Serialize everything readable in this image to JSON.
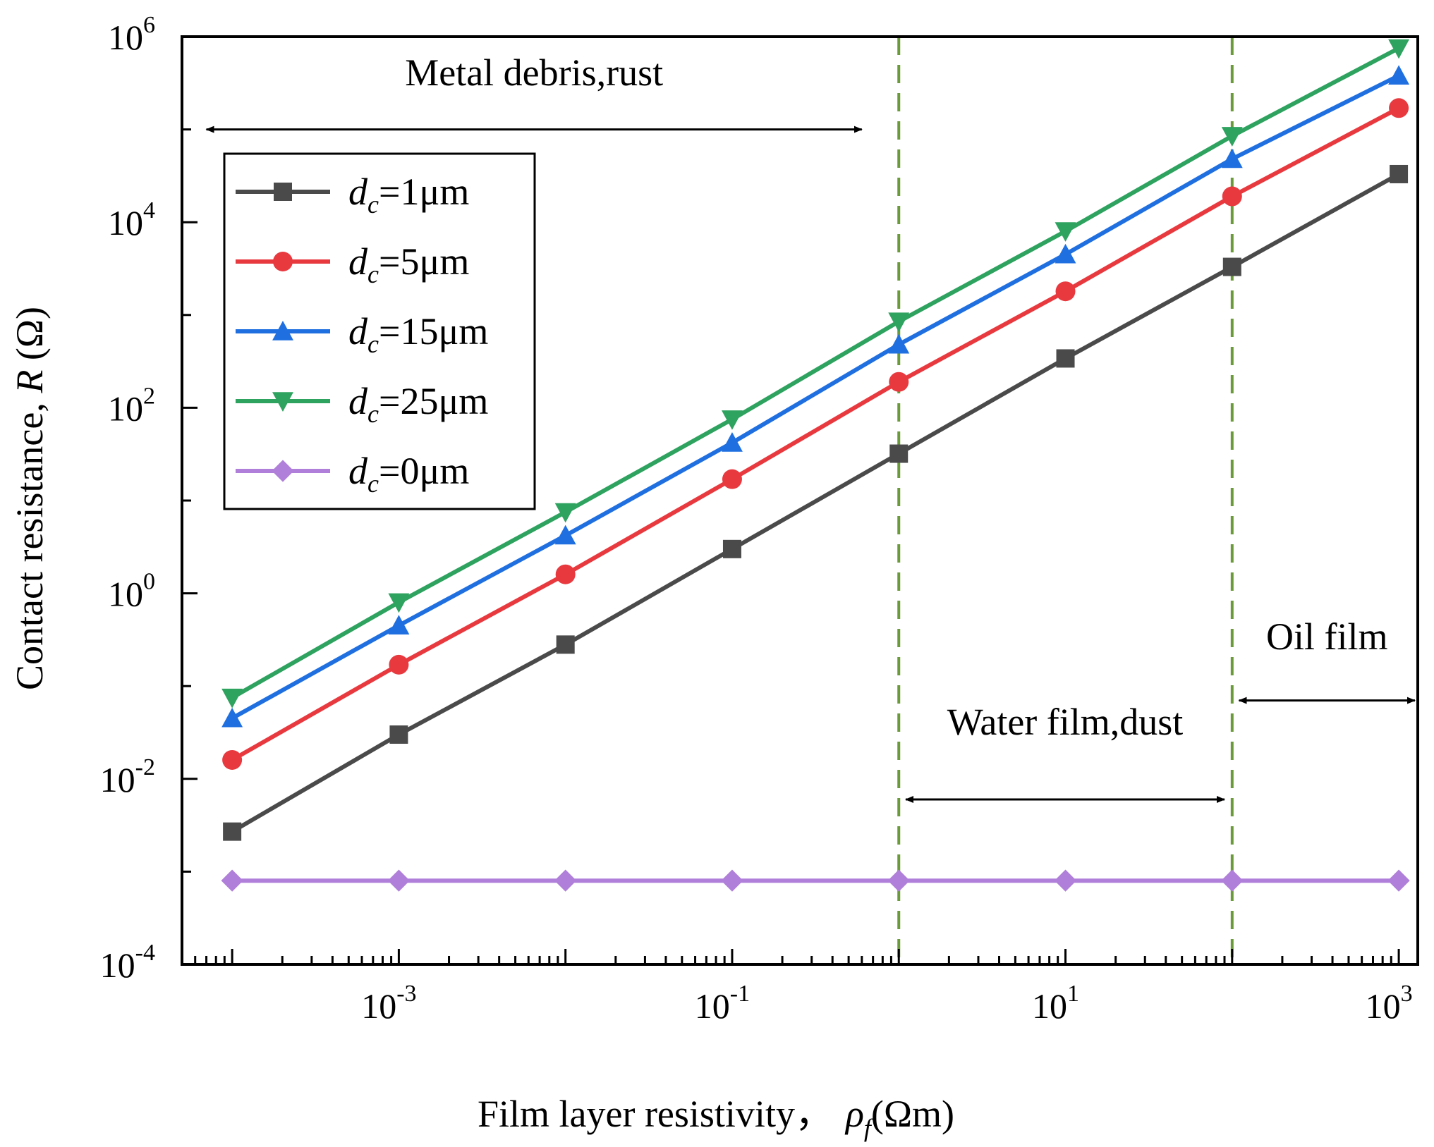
{
  "chart_data": {
    "type": "line",
    "xscale": "log",
    "yscale": "log",
    "xlim": [
      5e-05,
      1300
    ],
    "ylim": [
      0.0001,
      1000000
    ],
    "xlabel": "Film layer resistivity，",
    "xlabel_symbol": "ρ",
    "xlabel_sub": "f",
    "xlabel_unit": "(Ωm)",
    "ylabel": "Contact resistance, ",
    "ylabel_symbol": "R",
    "ylabel_unit": " (Ω)",
    "x_ticks": [
      {
        "value": 0.001,
        "base": "10",
        "exp": "-3"
      },
      {
        "value": 0.1,
        "base": "10",
        "exp": "-1"
      },
      {
        "value": 10,
        "base": "10",
        "exp": "1"
      },
      {
        "value": 1000,
        "base": "10",
        "exp": "3"
      }
    ],
    "y_ticks": [
      {
        "value": 0.0001,
        "base": "10",
        "exp": "-4"
      },
      {
        "value": 0.01,
        "base": "10",
        "exp": "-2"
      },
      {
        "value": 1,
        "base": "10",
        "exp": "0"
      },
      {
        "value": 100,
        "base": "10",
        "exp": "2"
      },
      {
        "value": 10000,
        "base": "10",
        "exp": "4"
      },
      {
        "value": 1000000,
        "base": "10",
        "exp": "6"
      }
    ],
    "x": [
      0.0001,
      0.001,
      0.01,
      0.1,
      1,
      10,
      100,
      1000
    ],
    "series": [
      {
        "name": "dc=1μm",
        "label_var": "d",
        "label_sub": "c",
        "label_val": "=1μm",
        "color": "#4a4a4a",
        "marker": "square",
        "values": [
          0.0027,
          0.03,
          0.28,
          3.0,
          32,
          340,
          3300,
          33000
        ]
      },
      {
        "name": "dc=5μm",
        "label_var": "d",
        "label_sub": "c",
        "label_val": "=5μm",
        "color": "#e8393f",
        "marker": "circle",
        "values": [
          0.016,
          0.17,
          1.6,
          17,
          190,
          1800,
          19000,
          170000
        ]
      },
      {
        "name": "dc=15μm",
        "label_var": "d",
        "label_sub": "c",
        "label_val": "=15μm",
        "color": "#1f6fe0",
        "marker": "triangle-up",
        "values": [
          0.045,
          0.45,
          4.2,
          42,
          480,
          4500,
          48000,
          380000
        ]
      },
      {
        "name": "dc=25μm",
        "label_var": "d",
        "label_sub": "c",
        "label_val": "=25μm",
        "color": "#2ea25f",
        "marker": "triangle-down",
        "values": [
          0.075,
          0.8,
          7.5,
          75,
          850,
          8000,
          85000,
          750000
        ]
      },
      {
        "name": "dc=0μm",
        "label_var": "d",
        "label_sub": "c",
        "label_val": "=0μm",
        "color": "#b07fd9",
        "marker": "diamond",
        "values": [
          0.0008,
          0.0008,
          0.0008,
          0.0008,
          0.0008,
          0.0008,
          0.0008,
          0.0008
        ]
      }
    ],
    "vlines": [
      {
        "x": 1,
        "color": "#6b9a3a"
      },
      {
        "x": 100,
        "color": "#6b9a3a"
      }
    ],
    "annotations": [
      {
        "text": "Metal debris,rust",
        "x_from": 7e-05,
        "x_to": 0.6,
        "y_arrow": 100000,
        "y_text": 300000
      },
      {
        "text": "Water film,dust",
        "x_from": 1.1,
        "x_to": 90,
        "y_arrow": 0.006,
        "y_text": 0.03
      },
      {
        "text": "Oil film",
        "x_from": 110,
        "x_to": 1250,
        "y_arrow": 0.07,
        "y_text": 0.25
      }
    ],
    "legend_position": "top-left",
    "grid": false
  }
}
